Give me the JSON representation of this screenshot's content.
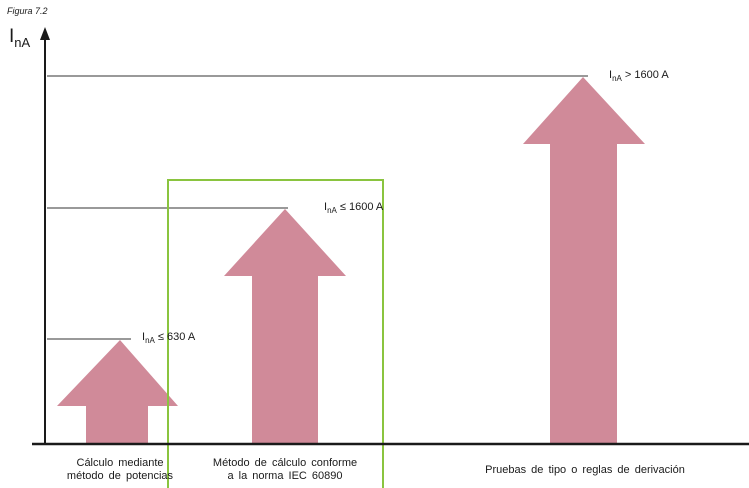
{
  "figure_label": "Figura 7.2",
  "axis": {
    "symbol": "I",
    "subscript": "nA"
  },
  "levels": [
    {
      "symbol": "I",
      "subscript": "nA",
      "relation": "≤ 630 A"
    },
    {
      "symbol": "I",
      "subscript": "nA",
      "relation": "≤ 1600 A"
    },
    {
      "symbol": "I",
      "subscript": "nA",
      "relation": "> 1600 A"
    }
  ],
  "categories": [
    {
      "line1": "Cálculo mediante",
      "line2": "método de potencias"
    },
    {
      "line1": "Método de cálculo conforme",
      "line2": "a la norma IEC 60890"
    },
    {
      "line1": "Pruebas de tipo o reglas de derivación",
      "line2": ""
    }
  ],
  "highlight": {
    "category": "Método de cálculo conforme a la norma IEC 60890"
  },
  "colors": {
    "arrow": "#d08a99",
    "highlight_box": "#8ac43f",
    "axis": "#1a1a1a",
    "level_line": "#333333"
  }
}
